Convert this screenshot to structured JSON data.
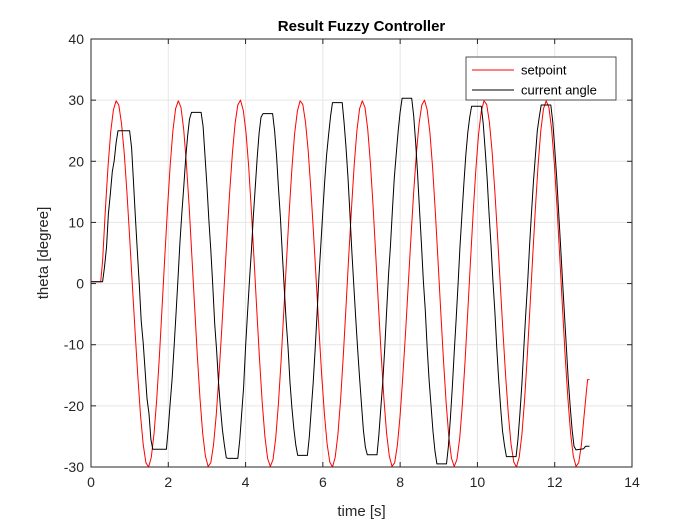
{
  "chart_data": {
    "type": "line",
    "title": "Result Fuzzy Controller",
    "xlabel": "time [s]",
    "ylabel": "theta [degree]",
    "xlim": [
      0,
      14
    ],
    "ylim": [
      -30,
      40
    ],
    "xticks": [
      0,
      2,
      4,
      6,
      8,
      10,
      12,
      14
    ],
    "yticks": [
      -30,
      -20,
      -10,
      0,
      10,
      20,
      30,
      40
    ],
    "grid": true,
    "legend_position": "top-right",
    "series": [
      {
        "name": "setpoint",
        "color": "#ff0000",
        "x": [
          0,
          0.25,
          0.3,
          0.37,
          0.44,
          0.51,
          0.58,
          0.65,
          0.72,
          0.79,
          0.86,
          0.93,
          1.0,
          1.07,
          1.14,
          1.21,
          1.28,
          1.35,
          1.42,
          1.49,
          1.56,
          1.63,
          1.7,
          1.77,
          1.84,
          1.91,
          1.98,
          2.05,
          2.12,
          2.19,
          2.26,
          2.33,
          2.4,
          2.47,
          2.54,
          2.61,
          2.68,
          2.75,
          2.82,
          2.89,
          2.96,
          3.03,
          3.1,
          3.17,
          3.24,
          3.31,
          3.38,
          3.45,
          3.52,
          3.59,
          3.66,
          3.73,
          3.8,
          3.87,
          3.94,
          4.01,
          4.08,
          4.15,
          4.22,
          4.29,
          4.36,
          4.43,
          4.5,
          4.57,
          4.64,
          4.71,
          4.78,
          4.85,
          4.92,
          4.99,
          5.06,
          5.13,
          5.2,
          5.27,
          5.34,
          5.41,
          5.48,
          5.55,
          5.62,
          5.69,
          5.76,
          5.83,
          5.9,
          5.97,
          6.04,
          6.11,
          6.18,
          6.25,
          6.32,
          6.39,
          6.46,
          6.53,
          6.6,
          6.67,
          6.74,
          6.81,
          6.88,
          6.95,
          7.02,
          7.09,
          7.16,
          7.23,
          7.3,
          7.37,
          7.44,
          7.51,
          7.58,
          7.65,
          7.72,
          7.79,
          7.86,
          7.93,
          8.0,
          8.07,
          8.14,
          8.21,
          8.28,
          8.35,
          8.42,
          8.49,
          8.56,
          8.63,
          8.7,
          8.77,
          8.84,
          8.91,
          8.98,
          9.05,
          9.12,
          9.19,
          9.26,
          9.33,
          9.4,
          9.47,
          9.54,
          9.61,
          9.68,
          9.75,
          9.82,
          9.89,
          9.96,
          10.03,
          10.1,
          10.17,
          10.24,
          10.31,
          10.38,
          10.45,
          10.52,
          10.59,
          10.66,
          10.73,
          10.8,
          10.87,
          10.94,
          11.01,
          11.08,
          11.15,
          11.22,
          11.29,
          11.36,
          11.43,
          11.5,
          11.57,
          11.64,
          11.71,
          11.78,
          11.85,
          11.92,
          11.99,
          12.06,
          12.13,
          12.2,
          12.27,
          12.34,
          12.41,
          12.48,
          12.55,
          12.62,
          12.69,
          12.76,
          12.83,
          12.85,
          12.9
        ],
        "y": [
          0.3,
          0.3,
          3.7,
          11.9,
          19.1,
          24.8,
          28.4,
          29.9,
          29.2,
          26.2,
          21.4,
          15.0,
          7.7,
          -0.1,
          -7.9,
          -15.1,
          -21.5,
          -26.3,
          -29.3,
          -30.0,
          -28.4,
          -24.6,
          -19.0,
          -11.9,
          -3.8,
          4.4,
          12.3,
          19.4,
          25.0,
          28.6,
          29.9,
          28.8,
          25.2,
          19.6,
          12.5,
          4.4,
          -3.7,
          -11.7,
          -18.8,
          -24.5,
          -28.2,
          -29.9,
          -29.3,
          -26.4,
          -21.6,
          -15.2,
          -7.9,
          -0.1,
          7.7,
          15.0,
          21.3,
          26.2,
          29.2,
          30.0,
          28.3,
          24.7,
          19.1,
          11.8,
          3.8,
          -4.4,
          -12.3,
          -19.4,
          -25.0,
          -28.6,
          -29.9,
          -28.8,
          -25.3,
          -19.7,
          -12.6,
          -4.5,
          3.7,
          11.7,
          18.8,
          24.5,
          28.2,
          29.9,
          29.3,
          26.4,
          21.7,
          15.3,
          8.0,
          0.2,
          -7.6,
          -15.0,
          -21.3,
          -26.2,
          -29.2,
          -30.0,
          -28.4,
          -24.7,
          -19.0,
          -11.8,
          -3.8,
          4.4,
          12.3,
          19.4,
          25.0,
          28.6,
          29.9,
          28.8,
          25.3,
          19.7,
          12.6,
          4.5,
          -3.7,
          -11.7,
          -18.8,
          -24.5,
          -28.2,
          -29.9,
          -29.3,
          -26.4,
          -21.6,
          -15.2,
          -7.9,
          -0.1,
          7.7,
          15.0,
          21.3,
          26.2,
          29.2,
          30.0,
          28.4,
          24.7,
          19.0,
          11.8,
          3.8,
          -4.4,
          -12.3,
          -19.4,
          -25.0,
          -28.6,
          -29.9,
          -28.8,
          -25.3,
          -19.7,
          -12.6,
          -4.5,
          3.7,
          11.7,
          18.8,
          24.5,
          28.2,
          29.9,
          29.3,
          26.4,
          21.6,
          15.2,
          7.9,
          0.1,
          -7.7,
          -15.0,
          -21.3,
          -26.2,
          -29.2,
          -30.0,
          -28.4,
          -24.7,
          -19.0,
          -11.8,
          -3.8,
          4.4,
          12.3,
          19.4,
          25.0,
          28.6,
          29.9,
          28.8,
          25.3,
          19.7,
          12.6,
          4.5,
          -3.7,
          -11.7,
          -18.8,
          -24.5,
          -28.2,
          -29.9,
          -29.3,
          -26.4,
          -21.6,
          -17.0,
          -15.7,
          -15.7
        ]
      },
      {
        "name": "current angle",
        "color": "#000000",
        "x": [
          0,
          0.3,
          0.35,
          0.4,
          0.45,
          0.5,
          0.55,
          0.6,
          0.65,
          0.7,
          1.0,
          1.05,
          1.1,
          1.15,
          1.2,
          1.25,
          1.3,
          1.35,
          1.4,
          1.45,
          1.5,
          1.55,
          1.6,
          1.65,
          1.7,
          1.95,
          2.0,
          2.05,
          2.1,
          2.15,
          2.2,
          2.25,
          2.3,
          2.35,
          2.4,
          2.45,
          2.5,
          2.55,
          2.6,
          2.85,
          2.9,
          2.95,
          3.0,
          3.05,
          3.1,
          3.15,
          3.2,
          3.25,
          3.3,
          3.35,
          3.4,
          3.45,
          3.5,
          3.55,
          3.8,
          3.85,
          3.9,
          3.95,
          4.0,
          4.05,
          4.1,
          4.15,
          4.2,
          4.25,
          4.3,
          4.35,
          4.4,
          4.45,
          4.7,
          4.75,
          4.8,
          4.85,
          4.9,
          4.95,
          5.0,
          5.05,
          5.1,
          5.15,
          5.2,
          5.25,
          5.3,
          5.35,
          5.6,
          5.65,
          5.7,
          5.75,
          5.8,
          5.85,
          5.9,
          5.95,
          6.0,
          6.05,
          6.1,
          6.15,
          6.2,
          6.25,
          6.5,
          6.55,
          6.6,
          6.65,
          6.7,
          6.75,
          6.8,
          6.85,
          6.9,
          6.95,
          7.0,
          7.05,
          7.1,
          7.15,
          7.4,
          7.45,
          7.5,
          7.55,
          7.6,
          7.65,
          7.7,
          7.75,
          7.8,
          7.85,
          7.9,
          7.95,
          8.0,
          8.05,
          8.3,
          8.35,
          8.4,
          8.45,
          8.5,
          8.55,
          8.6,
          8.65,
          8.7,
          8.75,
          8.8,
          8.85,
          8.9,
          8.95,
          9.2,
          9.25,
          9.3,
          9.35,
          9.4,
          9.45,
          9.5,
          9.55,
          9.6,
          9.65,
          9.7,
          9.75,
          9.8,
          9.85,
          10.1,
          10.15,
          10.2,
          10.25,
          10.3,
          10.35,
          10.4,
          10.45,
          10.5,
          10.55,
          10.6,
          10.65,
          10.7,
          10.75,
          11.0,
          11.05,
          11.1,
          11.15,
          11.2,
          11.25,
          11.3,
          11.35,
          11.4,
          11.45,
          11.5,
          11.55,
          11.6,
          11.65,
          11.9,
          11.95,
          12.0,
          12.05,
          12.1,
          12.15,
          12.2,
          12.25,
          12.3,
          12.35,
          12.4,
          12.45,
          12.5,
          12.55,
          12.75,
          12.8,
          12.9
        ],
        "y": [
          0.3,
          0.3,
          2.7,
          5.9,
          11.4,
          14.6,
          18.3,
          20.1,
          23.0,
          25.0,
          25.0,
          22.2,
          16.6,
          10.8,
          5.1,
          -0.2,
          -6.1,
          -9.7,
          -14.2,
          -18.8,
          -21.3,
          -25.5,
          -27.1,
          -27.1,
          -27.1,
          -27.1,
          -23.6,
          -19.5,
          -15.6,
          -10.3,
          -5.0,
          0.5,
          6.6,
          11.4,
          15.7,
          20.5,
          24.1,
          26.9,
          28.0,
          28.0,
          25.7,
          20.9,
          16.1,
          10.3,
          5.5,
          -0.1,
          -6.6,
          -10.9,
          -16.1,
          -20.4,
          -23.9,
          -26.3,
          -28.5,
          -28.6,
          -28.6,
          -25.5,
          -21.2,
          -17.0,
          -10.3,
          -4.9,
          0.3,
          5.4,
          10.9,
          15.6,
          20.6,
          24.6,
          27.2,
          27.8,
          27.8,
          25.0,
          21.0,
          15.8,
          10.8,
          4.9,
          -0.6,
          -6.0,
          -10.6,
          -16.2,
          -20.3,
          -23.8,
          -26.4,
          -28.1,
          -28.1,
          -25.1,
          -20.5,
          -16.2,
          -10.9,
          -4.8,
          1.3,
          6.5,
          12.0,
          17.0,
          21.2,
          24.5,
          27.4,
          29.6,
          29.6,
          26.3,
          22.3,
          17.3,
          11.5,
          5.4,
          -0.3,
          -5.6,
          -10.6,
          -15.5,
          -19.8,
          -24.0,
          -26.8,
          -28.0,
          -28.0,
          -24.7,
          -20.4,
          -16.0,
          -10.7,
          -4.6,
          1.6,
          6.3,
          12.0,
          17.3,
          21.3,
          25.0,
          28.0,
          30.3,
          30.3,
          27.4,
          23.2,
          18.2,
          12.1,
          6.6,
          0.6,
          -4.4,
          -10.6,
          -15.8,
          -20.1,
          -24.2,
          -27.3,
          -29.5,
          -29.5,
          -26.6,
          -22.0,
          -17.0,
          -11.3,
          -5.7,
          0.0,
          6.1,
          11.4,
          16.4,
          21.0,
          24.7,
          27.2,
          29.0,
          29.0,
          26.2,
          21.8,
          17.3,
          11.6,
          6.3,
          0.5,
          -4.4,
          -10.6,
          -15.8,
          -20.2,
          -24.1,
          -26.5,
          -28.3,
          -28.3,
          -25.4,
          -21.3,
          -16.4,
          -10.6,
          -5.1,
          0.3,
          6.3,
          11.6,
          16.8,
          20.9,
          25.0,
          27.3,
          29.2,
          29.2,
          26.4,
          22.1,
          17.6,
          11.8,
          6.4,
          0.8,
          -4.9,
          -10.2,
          -15.6,
          -20.1,
          -23.9,
          -26.6,
          -27.2,
          -27.0,
          -26.6,
          -26.6
        ]
      }
    ]
  }
}
